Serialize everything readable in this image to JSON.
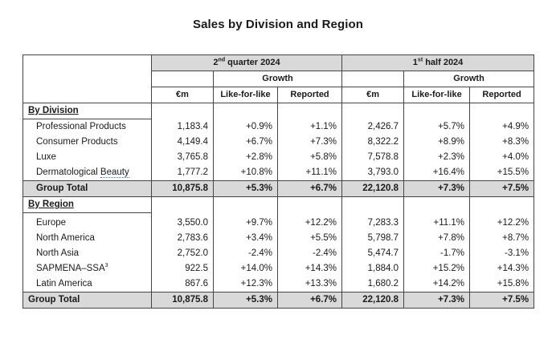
{
  "title": "Sales by Division and Region",
  "header": {
    "q2_period": {
      "prefix": "2",
      "sup": "nd",
      "suffix": " quarter 2024"
    },
    "h1_period": {
      "prefix": "1",
      "sup": "st",
      "suffix": " half 2024"
    },
    "growth": "Growth",
    "col_em": "€m",
    "col_lfl": "Like-for-like",
    "col_reported": "Reported"
  },
  "division_section": {
    "label": "By Division",
    "rows": [
      {
        "name": "Professional Products",
        "q2_em": "1,183.4",
        "q2_lfl": "+0.9%",
        "q2_rep": "+1.1%",
        "h1_em": "2,426.7",
        "h1_lfl": "+5.7%",
        "h1_rep": "+4.9%"
      },
      {
        "name": "Consumer Products",
        "q2_em": "4,149.4",
        "q2_lfl": "+6.7%",
        "q2_rep": "+7.3%",
        "h1_em": "8,322.2",
        "h1_lfl": "+8.9%",
        "h1_rep": "+8.3%"
      },
      {
        "name": "Luxe",
        "q2_em": "3,765.8",
        "q2_lfl": "+2.8%",
        "q2_rep": "+5.8%",
        "h1_em": "7,578.8",
        "h1_lfl": "+2.3%",
        "h1_rep": "+4.0%"
      },
      {
        "name_a": "Dermatological ",
        "name_b": "Beauty",
        "q2_em": "1,777.2",
        "q2_lfl": "+10.8%",
        "q2_rep": "+11.1%",
        "h1_em": "3,793.0",
        "h1_lfl": "+16.4%",
        "h1_rep": "+15.5%"
      }
    ],
    "total": {
      "name": "Group Total",
      "q2_em": "10,875.8",
      "q2_lfl": "+5.3%",
      "q2_rep": "+6.7%",
      "h1_em": "22,120.8",
      "h1_lfl": "+7.3%",
      "h1_rep": "+7.5%"
    }
  },
  "region_section": {
    "label": "By Region",
    "rows": [
      {
        "name": "Europe",
        "q2_em": "3,550.0",
        "q2_lfl": "+9.7%",
        "q2_rep": "+12.2%",
        "h1_em": "7,283.3",
        "h1_lfl": "+11.1%",
        "h1_rep": "+12.2%"
      },
      {
        "name": "North America",
        "q2_em": "2,783.6",
        "q2_lfl": "+3.4%",
        "q2_rep": "+5.5%",
        "h1_em": "5,798.7",
        "h1_lfl": "+7.8%",
        "h1_rep": "+8.7%"
      },
      {
        "name": "North Asia",
        "q2_em": "2,752.0",
        "q2_lfl": "-2.4%",
        "q2_rep": "-2.4%",
        "h1_em": "5,474.7",
        "h1_lfl": "-1.7%",
        "h1_rep": "-3.1%"
      },
      {
        "name": "SAPMENA–SSA",
        "name_sup": "3",
        "q2_em": "922.5",
        "q2_lfl": "+14.0%",
        "q2_rep": "+14.3%",
        "h1_em": "1,884.0",
        "h1_lfl": "+15.2%",
        "h1_rep": "+14.3%"
      },
      {
        "name": "Latin America",
        "q2_em": "867.6",
        "q2_lfl": "+12.3%",
        "q2_rep": "+13.3%",
        "h1_em": "1,680.2",
        "h1_lfl": "+14.2%",
        "h1_rep": "+15.8%"
      }
    ],
    "total": {
      "name": "Group Total",
      "q2_em": "10,875.8",
      "q2_lfl": "+5.3%",
      "q2_rep": "+6.7%",
      "h1_em": "22,120.8",
      "h1_lfl": "+7.3%",
      "h1_rep": "+7.5%"
    }
  },
  "colors": {
    "header_shade": "#d9d9d9",
    "total_shade": "#d9d9d9",
    "spellcheck_underline": "#2a7bd4"
  }
}
